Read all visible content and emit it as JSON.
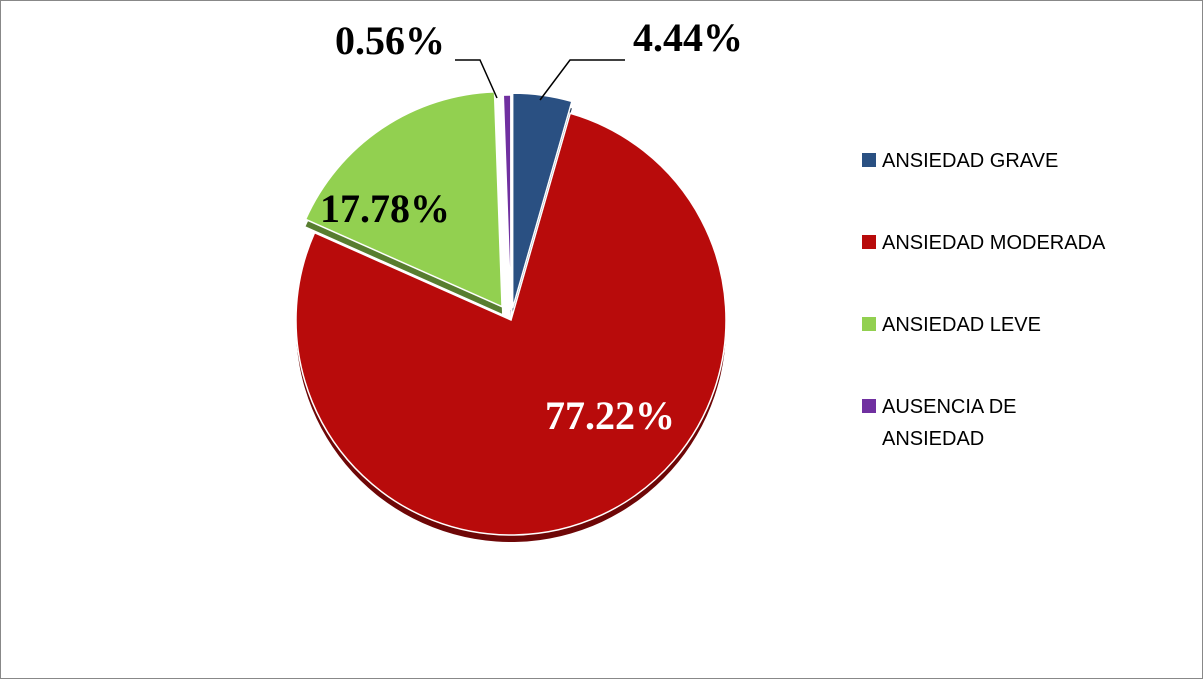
{
  "chart_data": {
    "type": "pie",
    "categories": [
      "ANSIEDAD GRAVE",
      "ANSIEDAD MODERADA",
      "ANSIEDAD LEVE",
      "AUSENCIA DE ANSIEDAD"
    ],
    "values": [
      4.44,
      77.22,
      17.78,
      0.56
    ],
    "value_labels": [
      "4.44%",
      "77.22%",
      "17.78%",
      "0.56%"
    ],
    "colors": [
      "#2a5082",
      "#b80b0b",
      "#92d050",
      "#7030a0"
    ],
    "legend": "right"
  }
}
